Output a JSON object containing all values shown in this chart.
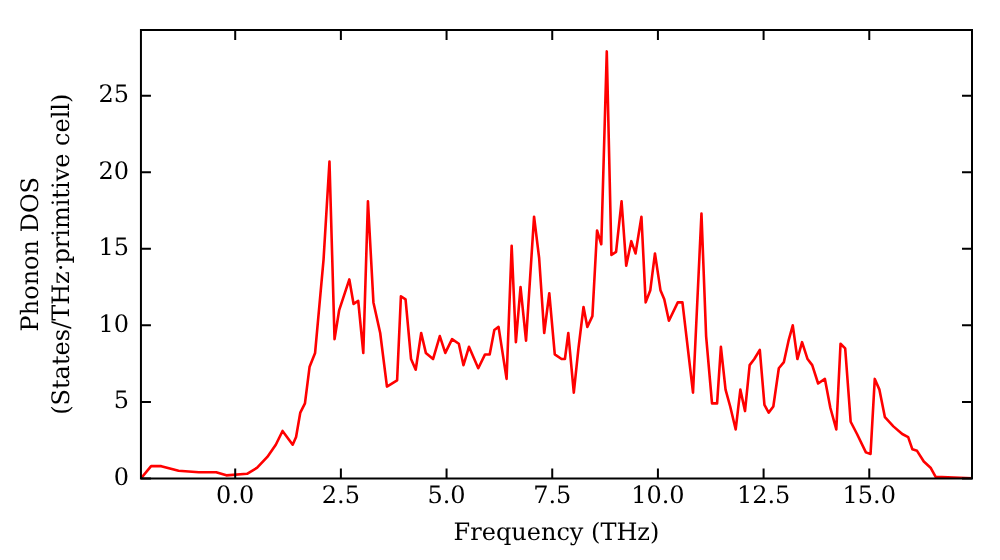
{
  "chart_data": {
    "type": "line",
    "xlabel": "Frequency (THz)",
    "ylabel": "Phonon DOS\n(States/THz·primitive cell)",
    "x": [
      -2.23,
      -1.99,
      -1.75,
      -1.34,
      -0.86,
      -0.45,
      -0.21,
      0.28,
      0.52,
      0.76,
      0.96,
      1.12,
      1.36,
      1.44,
      1.54,
      1.65,
      1.76,
      1.89,
      2.09,
      2.23,
      2.35,
      2.46,
      2.7,
      2.8,
      2.91,
      3.03,
      3.14,
      3.27,
      3.43,
      3.59,
      3.83,
      3.92,
      4.03,
      4.16,
      4.27,
      4.4,
      4.51,
      4.68,
      4.84,
      4.97,
      5.13,
      5.29,
      5.4,
      5.53,
      5.75,
      5.91,
      6.02,
      6.13,
      6.23,
      6.42,
      6.54,
      6.64,
      6.75,
      6.88,
      7.07,
      7.19,
      7.31,
      7.43,
      7.56,
      7.72,
      7.8,
      7.88,
      8.01,
      8.12,
      8.24,
      8.33,
      8.45,
      8.56,
      8.66,
      8.79,
      8.9,
      9.01,
      9.14,
      9.25,
      9.37,
      9.47,
      9.61,
      9.71,
      9.82,
      9.93,
      10.06,
      10.15,
      10.26,
      10.47,
      10.58,
      10.83,
      11.03,
      11.14,
      11.28,
      11.4,
      11.49,
      11.6,
      11.71,
      11.84,
      11.95,
      12.06,
      12.17,
      12.28,
      12.41,
      12.52,
      12.62,
      12.73,
      12.86,
      12.98,
      13.09,
      13.19,
      13.3,
      13.41,
      13.54,
      13.65,
      13.79,
      13.95,
      14.08,
      14.22,
      14.32,
      14.43,
      14.56,
      14.71,
      14.92,
      15.03,
      15.13,
      15.24,
      15.37,
      15.57,
      15.78,
      15.92,
      16.02,
      16.13,
      16.29,
      16.45,
      16.57,
      17.43
    ],
    "series": [
      {
        "color": "#ff0000",
        "values": [
          0,
          0.8,
          0.8,
          0.5,
          0.4,
          0.4,
          0.2,
          0.3,
          0.7,
          1.4,
          2.2,
          3.1,
          2.2,
          2.7,
          4.3,
          4.9,
          7.3,
          8.2,
          14.3,
          20.7,
          9.1,
          11,
          13,
          11.4,
          11.6,
          8.2,
          18.1,
          11.5,
          9.5,
          6.0,
          6.4,
          11.9,
          11.7,
          7.8,
          7.1,
          9.5,
          8.2,
          7.8,
          9.3,
          8.2,
          9.1,
          8.8,
          7.4,
          8.6,
          7.2,
          8.1,
          8.1,
          9.7,
          9.9,
          6.5,
          15.2,
          8.9,
          12.5,
          9,
          17.1,
          14.4,
          9.5,
          12.1,
          8.1,
          7.8,
          7.8,
          9.5,
          5.6,
          8.5,
          11.2,
          9.9,
          10.6,
          16.2,
          15.3,
          27.9,
          14.6,
          14.8,
          18.1,
          13.9,
          15.5,
          14.7,
          17.1,
          11.5,
          12.3,
          14.7,
          12.3,
          11.7,
          10.3,
          11.5,
          11.5,
          5.6,
          17.3,
          9.3,
          4.9,
          4.9,
          8.6,
          5.8,
          4.7,
          3.2,
          5.8,
          4.4,
          7.4,
          7.8,
          8.4,
          4.8,
          4.3,
          4.7,
          7.2,
          7.6,
          9.0,
          10,
          7.8,
          8.9,
          7.8,
          7.4,
          6.2,
          6.5,
          4.6,
          3.2,
          8.8,
          8.5,
          3.7,
          2.9,
          1.7,
          1.6,
          6.5,
          5.8,
          4.0,
          3.4,
          2.9,
          2.7,
          1.9,
          1.8,
          1.1,
          0.7,
          0.1,
          0
        ]
      }
    ],
    "xlim": [
      -2.23,
      17.43
    ],
    "ylim": [
      0,
      29.3
    ],
    "xticks": [
      {
        "value": 0,
        "label": "0.0"
      },
      {
        "value": 2.5,
        "label": "2.5"
      },
      {
        "value": 5,
        "label": "5.0"
      },
      {
        "value": 7.5,
        "label": "7.5"
      },
      {
        "value": 10,
        "label": "10.0"
      },
      {
        "value": 12.5,
        "label": "12.5"
      },
      {
        "value": 15,
        "label": "15.0"
      }
    ],
    "yticks": [
      0,
      5,
      10,
      15,
      20,
      25
    ],
    "grid": false,
    "legend": false,
    "marker": "none",
    "line_style": "solid"
  }
}
